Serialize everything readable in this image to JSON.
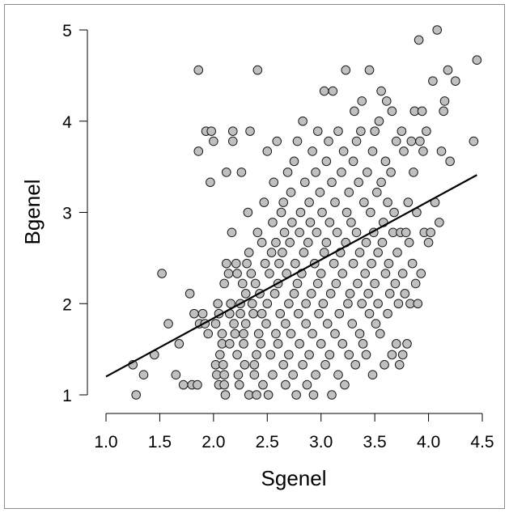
{
  "chart_data": {
    "type": "scatter",
    "title": "",
    "xlabel": "Sgenel",
    "ylabel": "Bgenel",
    "xlim": [
      1.0,
      4.5
    ],
    "ylim": [
      1,
      5
    ],
    "x_ticks": [
      "1.0",
      "1.5",
      "2.0",
      "2.5",
      "3.0",
      "3.5",
      "4.0",
      "4.5"
    ],
    "y_ticks": [
      "1",
      "2",
      "3",
      "4",
      "5"
    ],
    "grid": false,
    "legend": "none",
    "point_color": "#c0c0c0",
    "point_stroke": "#1a1a1a",
    "line_color": "#000000",
    "regression_line": {
      "x": [
        1.0,
        4.45
      ],
      "y": [
        1.2,
        3.41
      ]
    },
    "points": [
      [
        1.25,
        1.33
      ],
      [
        1.28,
        1.0
      ],
      [
        1.35,
        1.22
      ],
      [
        1.45,
        1.44
      ],
      [
        1.52,
        2.33
      ],
      [
        1.58,
        1.78
      ],
      [
        1.65,
        1.22
      ],
      [
        1.68,
        1.56
      ],
      [
        1.72,
        1.11
      ],
      [
        1.78,
        2.11
      ],
      [
        1.8,
        1.11
      ],
      [
        1.82,
        1.89
      ],
      [
        1.85,
        1.11
      ],
      [
        1.86,
        4.56
      ],
      [
        1.86,
        3.67
      ],
      [
        1.87,
        1.78
      ],
      [
        1.9,
        1.89
      ],
      [
        1.92,
        1.78
      ],
      [
        1.93,
        3.89
      ],
      [
        1.95,
        1.67
      ],
      [
        1.97,
        3.33
      ],
      [
        1.98,
        3.89
      ],
      [
        2.0,
        3.78
      ],
      [
        2.02,
        1.78
      ],
      [
        2.02,
        1.33
      ],
      [
        2.03,
        1.22
      ],
      [
        2.04,
        2.0
      ],
      [
        2.05,
        1.89
      ],
      [
        2.05,
        1.11
      ],
      [
        2.06,
        1.44
      ],
      [
        2.08,
        1.67
      ],
      [
        2.08,
        1.56
      ],
      [
        2.09,
        1.33
      ],
      [
        2.1,
        1.22
      ],
      [
        2.1,
        1.11
      ],
      [
        2.1,
        2.22
      ],
      [
        2.11,
        1.0
      ],
      [
        2.12,
        3.44
      ],
      [
        2.12,
        2.44
      ],
      [
        2.14,
        2.33
      ],
      [
        2.15,
        1.89
      ],
      [
        2.15,
        1.56
      ],
      [
        2.16,
        2.0
      ],
      [
        2.17,
        2.78
      ],
      [
        2.18,
        3.78
      ],
      [
        2.18,
        3.89
      ],
      [
        2.19,
        1.78
      ],
      [
        2.2,
        1.67
      ],
      [
        2.21,
        2.44
      ],
      [
        2.22,
        2.33
      ],
      [
        2.22,
        1.44
      ],
      [
        2.23,
        1.22
      ],
      [
        2.24,
        1.11
      ],
      [
        2.25,
        2.0
      ],
      [
        2.25,
        1.89
      ],
      [
        2.26,
        3.44
      ],
      [
        2.27,
        2.22
      ],
      [
        2.28,
        1.56
      ],
      [
        2.28,
        1.67
      ],
      [
        2.29,
        1.33
      ],
      [
        2.3,
        2.11
      ],
      [
        2.3,
        1.78
      ],
      [
        2.31,
        2.44
      ],
      [
        2.32,
        3.0
      ],
      [
        2.33,
        2.56
      ],
      [
        2.33,
        1.0
      ],
      [
        2.34,
        3.89
      ],
      [
        2.35,
        2.33
      ],
      [
        2.36,
        2.0
      ],
      [
        2.37,
        1.89
      ],
      [
        2.38,
        1.33
      ],
      [
        2.38,
        1.22
      ],
      [
        2.39,
        2.22
      ],
      [
        2.4,
        1.44
      ],
      [
        2.4,
        1.0
      ],
      [
        2.41,
        2.78
      ],
      [
        2.41,
        4.56
      ],
      [
        2.42,
        1.67
      ],
      [
        2.43,
        2.11
      ],
      [
        2.44,
        1.56
      ],
      [
        2.45,
        2.67
      ],
      [
        2.45,
        1.89
      ],
      [
        2.46,
        1.11
      ],
      [
        2.47,
        3.11
      ],
      [
        2.48,
        2.44
      ],
      [
        2.49,
        1.78
      ],
      [
        2.5,
        3.67
      ],
      [
        2.5,
        2.0
      ],
      [
        2.51,
        1.0
      ],
      [
        2.52,
        2.33
      ],
      [
        2.53,
        1.44
      ],
      [
        2.54,
        2.56
      ],
      [
        2.55,
        2.89
      ],
      [
        2.55,
        1.22
      ],
      [
        2.56,
        3.33
      ],
      [
        2.57,
        2.11
      ],
      [
        2.58,
        2.67
      ],
      [
        2.58,
        1.67
      ],
      [
        2.59,
        3.78
      ],
      [
        2.6,
        2.22
      ],
      [
        2.6,
        1.56
      ],
      [
        2.61,
        2.44
      ],
      [
        2.62,
        1.89
      ],
      [
        2.63,
        3.0
      ],
      [
        2.64,
        2.56
      ],
      [
        2.65,
        1.33
      ],
      [
        2.65,
        3.11
      ],
      [
        2.66,
        2.78
      ],
      [
        2.67,
        1.78
      ],
      [
        2.67,
        1.11
      ],
      [
        2.68,
        2.33
      ],
      [
        2.69,
        3.44
      ],
      [
        2.7,
        2.0
      ],
      [
        2.7,
        1.44
      ],
      [
        2.71,
        2.67
      ],
      [
        2.72,
        1.67
      ],
      [
        2.72,
        3.22
      ],
      [
        2.73,
        2.89
      ],
      [
        2.74,
        1.22
      ],
      [
        2.75,
        2.11
      ],
      [
        2.75,
        3.56
      ],
      [
        2.76,
        2.44
      ],
      [
        2.77,
        1.0
      ],
      [
        2.78,
        3.78
      ],
      [
        2.78,
        2.22
      ],
      [
        2.79,
        1.89
      ],
      [
        2.8,
        2.78
      ],
      [
        2.8,
        1.56
      ],
      [
        2.81,
        3.0
      ],
      [
        2.82,
        2.33
      ],
      [
        2.83,
        1.33
      ],
      [
        2.83,
        4.0
      ],
      [
        2.84,
        2.56
      ],
      [
        2.85,
        3.33
      ],
      [
        2.86,
        1.78
      ],
      [
        2.86,
        2.0
      ],
      [
        2.87,
        1.11
      ],
      [
        2.88,
        2.67
      ],
      [
        2.89,
        3.11
      ],
      [
        2.89,
        1.44
      ],
      [
        2.9,
        2.89
      ],
      [
        2.91,
        2.11
      ],
      [
        2.92,
        1.67
      ],
      [
        2.92,
        3.67
      ],
      [
        2.93,
        1.0
      ],
      [
        2.94,
        2.44
      ],
      [
        2.95,
        3.44
      ],
      [
        2.95,
        1.22
      ],
      [
        2.96,
        2.78
      ],
      [
        2.97,
        2.22
      ],
      [
        2.97,
        3.89
      ],
      [
        2.98,
        1.89
      ],
      [
        2.99,
        3.22
      ],
      [
        3.0,
        2.33
      ],
      [
        3.0,
        1.56
      ],
      [
        3.01,
        3.0
      ],
      [
        3.02,
        2.0
      ],
      [
        3.03,
        2.56
      ],
      [
        3.03,
        4.33
      ],
      [
        3.04,
        1.33
      ],
      [
        3.05,
        3.56
      ],
      [
        3.05,
        2.67
      ],
      [
        3.06,
        1.78
      ],
      [
        3.07,
        3.78
      ],
      [
        3.08,
        2.89
      ],
      [
        3.08,
        1.44
      ],
      [
        3.09,
        2.11
      ],
      [
        3.1,
        3.33
      ],
      [
        3.1,
        1.0
      ],
      [
        3.11,
        4.33
      ],
      [
        3.12,
        2.44
      ],
      [
        3.13,
        1.67
      ],
      [
        3.13,
        3.11
      ],
      [
        3.14,
        2.22
      ],
      [
        3.15,
        2.78
      ],
      [
        3.16,
        1.22
      ],
      [
        3.16,
        3.89
      ],
      [
        3.17,
        1.89
      ],
      [
        3.18,
        2.56
      ],
      [
        3.19,
        3.44
      ],
      [
        3.2,
        1.56
      ],
      [
        3.2,
        2.33
      ],
      [
        3.21,
        3.67
      ],
      [
        3.22,
        1.11
      ],
      [
        3.23,
        2.67
      ],
      [
        3.23,
        4.56
      ],
      [
        3.24,
        3.0
      ],
      [
        3.25,
        2.0
      ],
      [
        3.26,
        1.44
      ],
      [
        3.26,
        3.22
      ],
      [
        3.27,
        2.11
      ],
      [
        3.28,
        2.89
      ],
      [
        3.29,
        1.78
      ],
      [
        3.3,
        3.56
      ],
      [
        3.3,
        2.44
      ],
      [
        3.31,
        4.11
      ],
      [
        3.32,
        1.33
      ],
      [
        3.33,
        3.78
      ],
      [
        3.33,
        2.78
      ],
      [
        3.34,
        2.22
      ],
      [
        3.35,
        3.33
      ],
      [
        3.36,
        1.67
      ],
      [
        3.36,
        2.56
      ],
      [
        3.37,
        3.89
      ],
      [
        3.38,
        2.0
      ],
      [
        3.38,
        4.22
      ],
      [
        3.39,
        1.56
      ],
      [
        3.4,
        3.11
      ],
      [
        3.41,
        2.33
      ],
      [
        3.42,
        2.67
      ],
      [
        3.42,
        1.44
      ],
      [
        3.43,
        3.44
      ],
      [
        3.44,
        2.11
      ],
      [
        3.45,
        4.56
      ],
      [
        3.45,
        1.89
      ],
      [
        3.46,
        3.0
      ],
      [
        3.47,
        2.44
      ],
      [
        3.48,
        3.67
      ],
      [
        3.48,
        1.22
      ],
      [
        3.49,
        2.78
      ],
      [
        3.5,
        2.22
      ],
      [
        3.5,
        3.89
      ],
      [
        3.51,
        1.78
      ],
      [
        3.52,
        3.22
      ],
      [
        3.53,
        2.56
      ],
      [
        3.53,
        2.0
      ],
      [
        3.54,
        4.0
      ],
      [
        3.55,
        1.67
      ],
      [
        3.56,
        3.33
      ],
      [
        3.56,
        4.33
      ],
      [
        3.57,
        2.67
      ],
      [
        3.58,
        2.89
      ],
      [
        3.59,
        1.33
      ],
      [
        3.6,
        3.56
      ],
      [
        3.6,
        2.33
      ],
      [
        3.61,
        4.22
      ],
      [
        3.62,
        1.89
      ],
      [
        3.62,
        3.11
      ],
      [
        3.63,
        2.44
      ],
      [
        3.64,
        2.11
      ],
      [
        3.65,
        3.44
      ],
      [
        3.66,
        1.44
      ],
      [
        3.66,
        4.11
      ],
      [
        3.67,
        2.78
      ],
      [
        3.68,
        3.0
      ],
      [
        3.69,
        2.22
      ],
      [
        3.7,
        1.56
      ],
      [
        3.7,
        3.78
      ],
      [
        3.71,
        2.56
      ],
      [
        3.72,
        2.0
      ],
      [
        3.73,
        1.33
      ],
      [
        3.74,
        2.78
      ],
      [
        3.75,
        3.89
      ],
      [
        3.76,
        2.33
      ],
      [
        3.76,
        1.44
      ],
      [
        3.77,
        3.67
      ],
      [
        3.78,
        2.11
      ],
      [
        3.79,
        2.78
      ],
      [
        3.8,
        1.56
      ],
      [
        3.81,
        3.11
      ],
      [
        3.82,
        2.67
      ],
      [
        3.83,
        2.0
      ],
      [
        3.84,
        3.78
      ],
      [
        3.85,
        2.44
      ],
      [
        3.86,
        3.44
      ],
      [
        3.87,
        4.11
      ],
      [
        3.88,
        2.22
      ],
      [
        3.89,
        3.0
      ],
      [
        3.9,
        2.0
      ],
      [
        3.91,
        4.89
      ],
      [
        3.92,
        3.78
      ],
      [
        3.93,
        2.33
      ],
      [
        3.94,
        4.11
      ],
      [
        3.95,
        3.67
      ],
      [
        3.96,
        2.78
      ],
      [
        3.98,
        3.89
      ],
      [
        4.0,
        2.67
      ],
      [
        4.02,
        2.78
      ],
      [
        4.04,
        4.44
      ],
      [
        4.06,
        3.11
      ],
      [
        4.08,
        5.0
      ],
      [
        4.1,
        2.89
      ],
      [
        4.12,
        3.67
      ],
      [
        4.14,
        4.11
      ],
      [
        4.15,
        4.22
      ],
      [
        4.18,
        4.56
      ],
      [
        4.2,
        3.56
      ],
      [
        4.25,
        4.44
      ],
      [
        4.42,
        3.78
      ],
      [
        4.45,
        4.67
      ]
    ]
  }
}
